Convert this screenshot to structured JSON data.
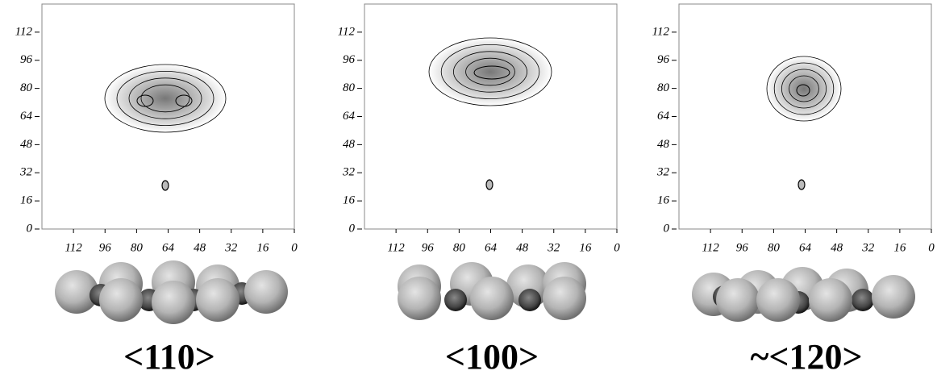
{
  "chart_data": [
    {
      "type": "contour",
      "xlim": [
        128,
        0
      ],
      "ylim": [
        0,
        128
      ],
      "xticks": [
        112,
        96,
        80,
        64,
        48,
        32,
        16,
        0
      ],
      "yticks": [
        0,
        16,
        32,
        48,
        64,
        80,
        96,
        112
      ],
      "caption": "<110>"
    },
    {
      "type": "contour",
      "xlim": [
        128,
        0
      ],
      "ylim": [
        0,
        128
      ],
      "xticks": [
        112,
        96,
        80,
        64,
        48,
        32,
        16,
        0
      ],
      "yticks": [
        0,
        16,
        32,
        48,
        64,
        80,
        96,
        112
      ],
      "caption": "<100>"
    },
    {
      "type": "contour",
      "xlim": [
        128,
        0
      ],
      "ylim": [
        0,
        128
      ],
      "xticks": [
        112,
        96,
        80,
        64,
        48,
        32,
        16,
        0
      ],
      "yticks": [
        0,
        16,
        32,
        48,
        64,
        80,
        96,
        112
      ],
      "caption": "~<120>"
    }
  ]
}
